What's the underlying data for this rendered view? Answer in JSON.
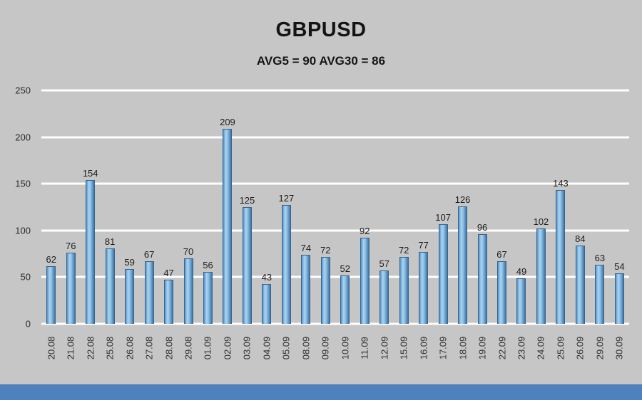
{
  "page": {
    "background_color": "#c6c6c6",
    "footer_bar_color": "#4f81bd"
  },
  "header": {
    "title": "GBPUSD",
    "subtitle": "AVG5 = 90 AVG30 = 86"
  },
  "chart_data": {
    "type": "bar",
    "title": "GBPUSD",
    "subtitle": "AVG5 = 90 AVG30 = 86",
    "categories": [
      "20.08",
      "21.08",
      "22.08",
      "25.08",
      "26.08",
      "27.08",
      "28.08",
      "29.08",
      "01.09",
      "02.09",
      "03.09",
      "04.09",
      "05.09",
      "08.09",
      "09.09",
      "10.09",
      "11.09",
      "12.09",
      "15.09",
      "16.09",
      "17.09",
      "18.09",
      "19.09",
      "22.09",
      "23.09",
      "24.09",
      "25.09",
      "26.09",
      "29.09",
      "30.09"
    ],
    "values": [
      62,
      76,
      154,
      81,
      59,
      67,
      47,
      70,
      56,
      209,
      125,
      43,
      127,
      74,
      72,
      52,
      92,
      57,
      72,
      77,
      107,
      126,
      96,
      67,
      49,
      102,
      143,
      84,
      63,
      54
    ],
    "ylim": [
      0,
      250
    ],
    "yticks": [
      0,
      50,
      100,
      150,
      200,
      250
    ],
    "grid": true,
    "gridline_color": "#ffffff",
    "bar_fill_colors": [
      "#5590c5",
      "#aad3f0",
      "#8fc2e8",
      "#3d74a4"
    ],
    "bar_border_color": "#38658d",
    "value_label_color": "#1c1c1c",
    "axis_label_color": "#333333",
    "xlabel": "",
    "ylabel": "",
    "legend": "none",
    "x_tick_rotation_deg": 90
  }
}
